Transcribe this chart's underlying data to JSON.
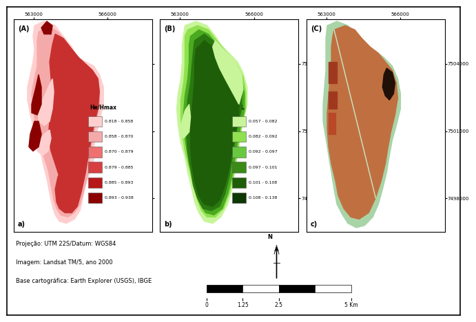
{
  "panel_A_label": "(A)",
  "panel_B_label": "(B)",
  "panel_C_label": "(C)",
  "panel_a_label": "a)",
  "panel_b_label": "b)",
  "panel_c_label": "c)",
  "xtick1": "563000",
  "xtick2": "566000",
  "ytick1": "7504000",
  "ytick2": "7501000",
  "ytick3": "7498000",
  "legend_A_title": "He/Hmax",
  "legend_A_colors": [
    "#FFCFCF",
    "#F5AAAA",
    "#EF7070",
    "#D84040",
    "#B81818",
    "#8B0000"
  ],
  "legend_A_labels": [
    "0.818 - 0.858",
    "0.858 - 0.870",
    "0.870 - 0.879",
    "0.879 - 0.885",
    "0.885 - 0.893",
    "0.893 - 0.938"
  ],
  "legend_B_title": "SDL",
  "legend_B_colors": [
    "#C8F59A",
    "#90E050",
    "#68C840",
    "#3A8A18",
    "#1E5E08",
    "#0D3800"
  ],
  "legend_B_labels": [
    "0.057 - 0.082",
    "0.082 - 0.092",
    "0.092 - 0.097",
    "0.097 - 0.101",
    "0.101 - 0.108",
    "0.108 - 0.138"
  ],
  "attribution_line1": "Projeção: UTM 22S/Datum: WGS84",
  "attribution_line2": "Imagem: Landsat TM/5, ano 2000",
  "attribution_line3": "Base cartográfica: Earth Explorer (USGS), IBGE",
  "scale_labels": [
    "0",
    "1.25",
    "2.5",
    "5 Km"
  ],
  "north_label": "N",
  "bg_color": "#FFFFFF"
}
